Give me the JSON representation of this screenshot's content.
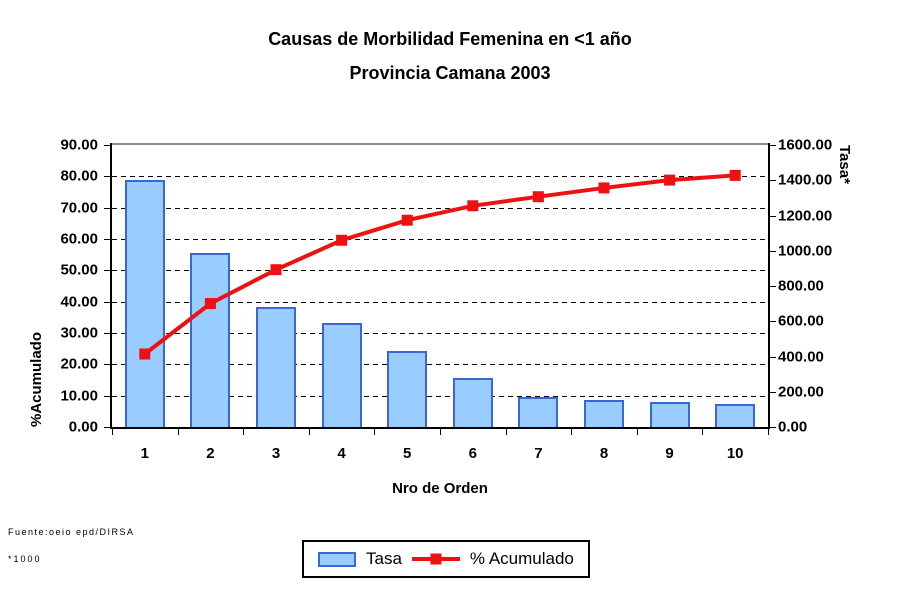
{
  "title": {
    "line1": "Causas de Morbilidad Femenina en <1 año",
    "line2": "Provincia Camana 2003"
  },
  "legend": {
    "tasa_label": "Tasa",
    "acumulado_label": "% Acumulado"
  },
  "footer": {
    "source": "Fuente:oeio epd/DIRSA",
    "note": "*1000"
  },
  "chart_data": {
    "type": "bar",
    "subtype": "pareto-combo-bar-line",
    "title": "Causas de Morbilidad Femenina en <1 año — Provincia Camana 2003",
    "categories": [
      "1",
      "2",
      "3",
      "4",
      "5",
      "6",
      "7",
      "8",
      "9",
      "10"
    ],
    "series": [
      {
        "name": "Tasa",
        "type": "bar",
        "axis": "right",
        "values": [
          1400,
          990,
          680,
          590,
          430,
          280,
          170,
          155,
          140,
          130
        ]
      },
      {
        "name": "% Acumulado",
        "type": "line",
        "axis": "left",
        "values": [
          23.3,
          39.4,
          50.2,
          59.6,
          66.0,
          70.6,
          73.5,
          76.3,
          78.8,
          80.3
        ]
      }
    ],
    "x_axis": {
      "title": "Nro de Orden",
      "tick_labels": [
        "1",
        "2",
        "3",
        "4",
        "5",
        "6",
        "7",
        "8",
        "9",
        "10"
      ]
    },
    "left_axis": {
      "title": "%Acumulado",
      "min": 0,
      "max": 90,
      "step": 10,
      "tick_labels": [
        "90.00",
        "80.00",
        "70.00",
        "60.00",
        "50.00",
        "40.00",
        "30.00",
        "20.00",
        "10.00",
        "0.00"
      ]
    },
    "right_axis": {
      "title": "Tasa*",
      "min": 0,
      "max": 1600,
      "step": 200,
      "tick_labels": [
        "1600.00",
        "1400.00",
        "1200.00",
        "1000.00",
        "800.00",
        "600.00",
        "400.00",
        "200.00",
        "0.00"
      ]
    },
    "grid": "horizontal-dashed",
    "legend_position": "bottom-center",
    "colors": {
      "bar_fill": "#99CCFF",
      "bar_border": "#3A66D9",
      "line": "#EE1111",
      "gridline": "#000000",
      "plot_top_border": "#909090",
      "axis_line": "#000000"
    }
  }
}
